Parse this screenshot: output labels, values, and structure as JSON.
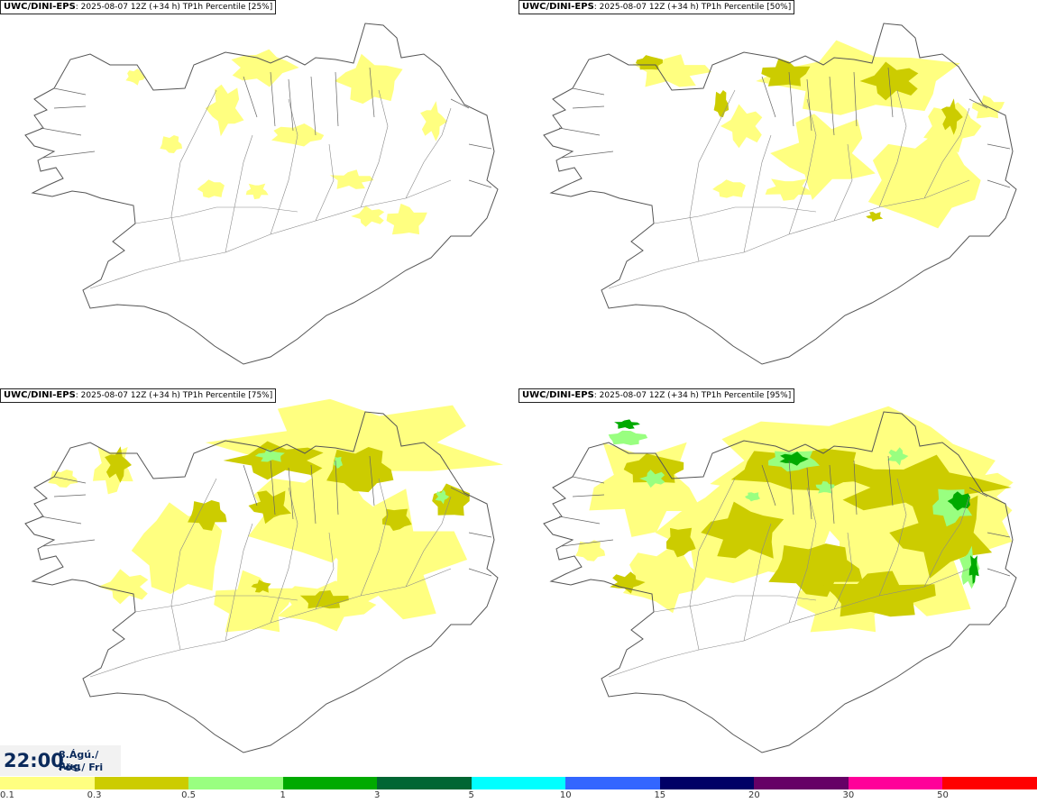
{
  "panels": [
    {
      "title_bold": "UWC/DINI-EPS",
      "title_rest": ": 2025-08-07 12Z (+34 h) TP1h Percentile [25%]",
      "level": 1
    },
    {
      "title_bold": "UWC/DINI-EPS",
      "title_rest": ": 2025-08-07 12Z (+34 h) TP1h Percentile [50%]",
      "level": 2
    },
    {
      "title_bold": "UWC/DINI-EPS",
      "title_rest": ": 2025-08-07 12Z (+34 h) TP1h Percentile [75%]",
      "level": 3
    },
    {
      "title_bold": "UWC/DINI-EPS",
      "title_rest": ": 2025-08-07 12Z (+34 h) TP1h Percentile [95%]",
      "level": 4
    }
  ],
  "time": {
    "hour": "22:00",
    "date_line1": "8.Ágú./ Aug",
    "date_line2": "Fös./ Fri"
  },
  "legend": {
    "colors": [
      "#ffff80",
      "#cccc00",
      "#99ff80",
      "#00aa00",
      "#006633",
      "#00ffff",
      "#3366ff",
      "#000066",
      "#660066",
      "#ff0099",
      "#ff0000"
    ],
    "ticks": [
      "0.1",
      "0.3",
      "0.5",
      "1",
      "3",
      "5",
      "10",
      "15",
      "20",
      "30",
      "50"
    ]
  }
}
